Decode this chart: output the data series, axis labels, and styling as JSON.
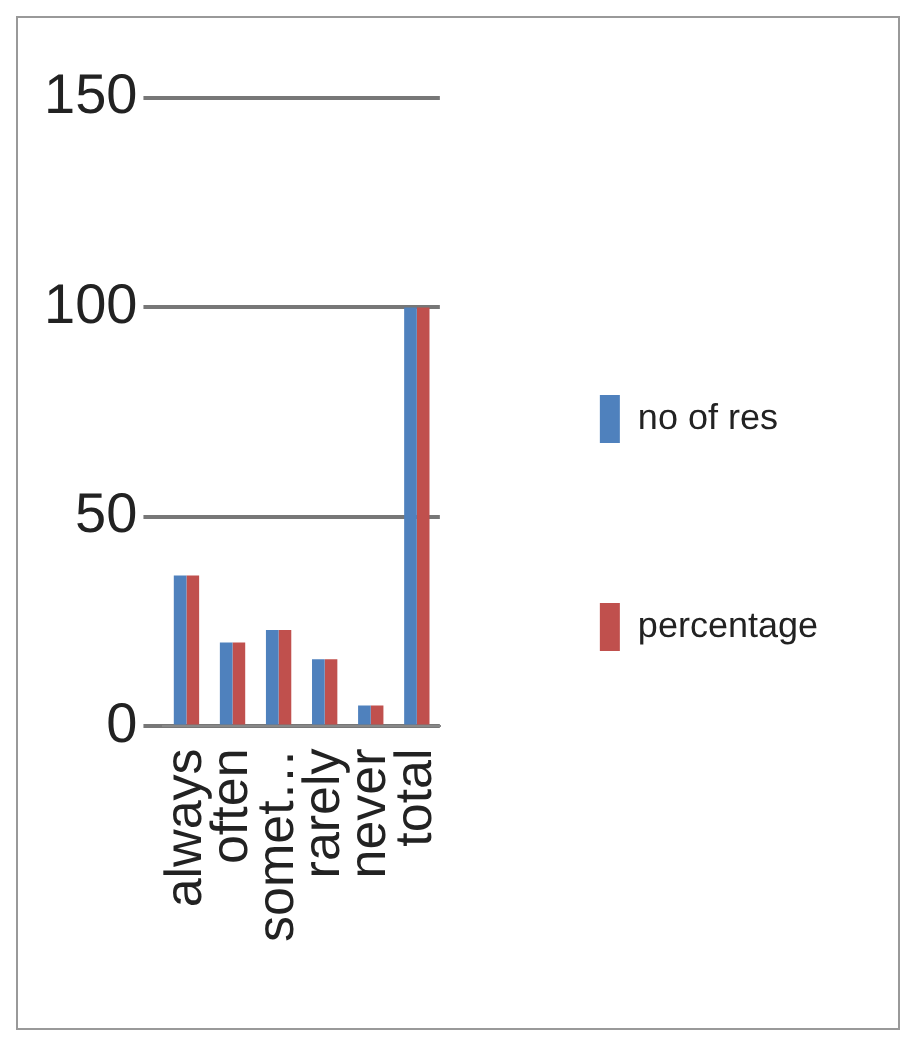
{
  "chart_data": {
    "type": "bar",
    "categories": [
      "always",
      "often",
      "somet…",
      "rarely",
      "never",
      "total"
    ],
    "series": [
      {
        "name": "no of res",
        "color": "#4f81bd",
        "values": [
          36,
          20,
          23,
          16,
          5,
          100
        ]
      },
      {
        "name": "percentage",
        "color": "#c0504d",
        "values": [
          36,
          20,
          23,
          16,
          5,
          100
        ]
      }
    ],
    "ylim": [
      0,
      150
    ],
    "yticks": [
      0,
      50,
      100,
      150
    ],
    "grid": "y",
    "legend": "right"
  }
}
